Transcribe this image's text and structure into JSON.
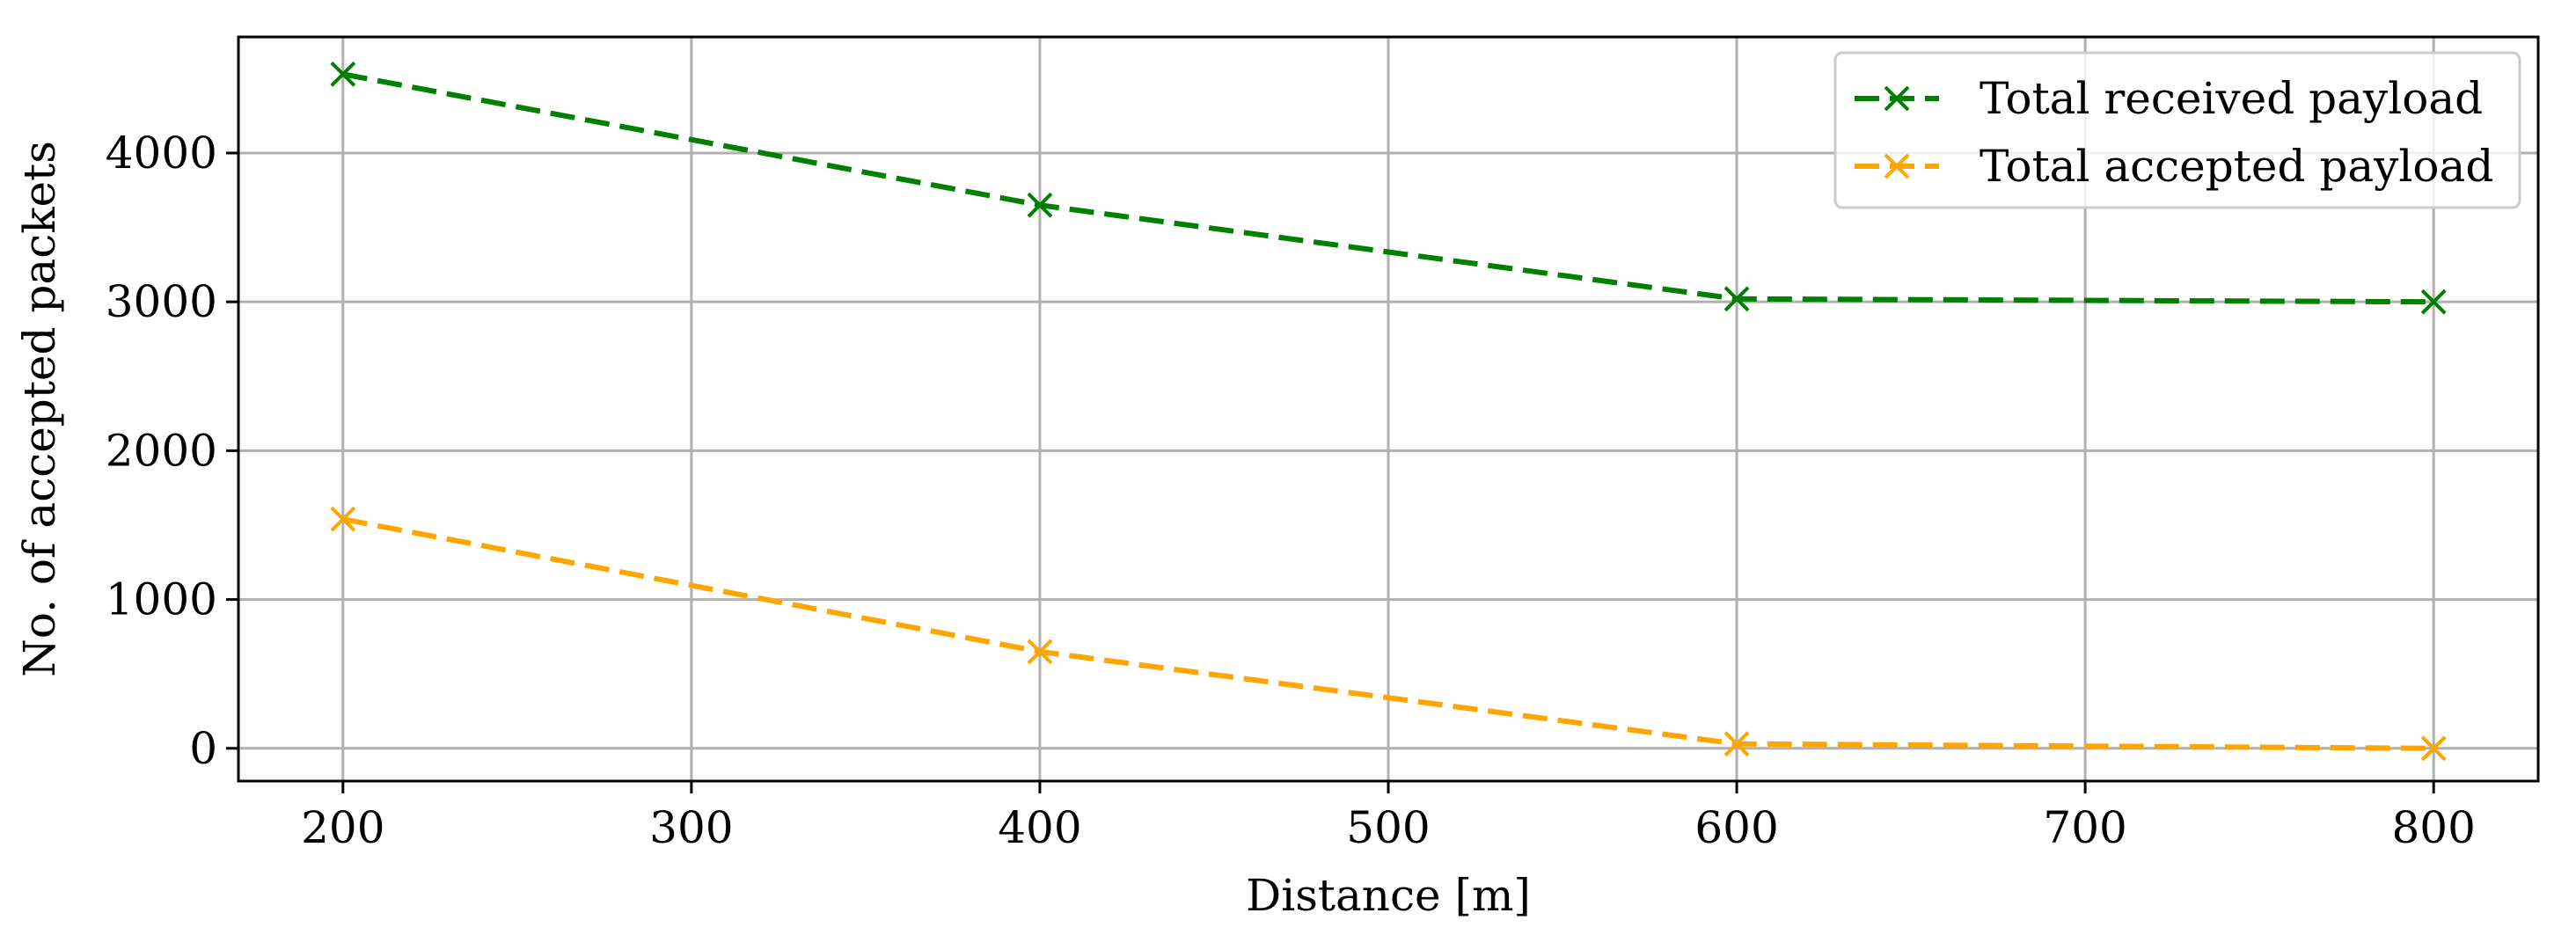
{
  "chart_data": {
    "type": "line",
    "title": "",
    "xlabel": "Distance [m]",
    "ylabel": "No. of accepted packets",
    "x": [
      200,
      400,
      600,
      800
    ],
    "xlim": [
      170,
      830
    ],
    "ylim": [
      -220,
      4780
    ],
    "xticks": [
      200,
      300,
      400,
      500,
      600,
      700,
      800
    ],
    "yticks": [
      0,
      1000,
      2000,
      3000,
      4000
    ],
    "grid": true,
    "legend_position": "top-right",
    "series": [
      {
        "name": "Total received payload",
        "color": "#008000",
        "line_style": "dashed",
        "marker": "x",
        "values": [
          4530,
          3650,
          3020,
          3000
        ]
      },
      {
        "name": "Total accepted payload",
        "color": "#FFA500",
        "line_style": "dashed",
        "marker": "x",
        "values": [
          1540,
          650,
          30,
          0
        ]
      }
    ]
  }
}
